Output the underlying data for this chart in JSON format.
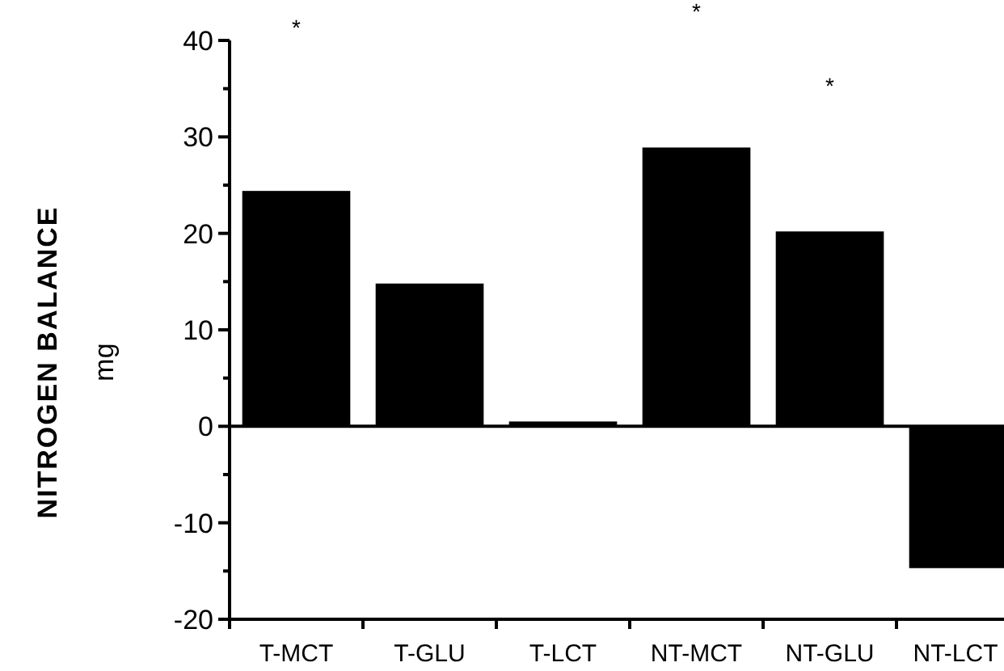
{
  "chart_data": {
    "type": "bar",
    "ylabel": "NITROGEN BALANCE",
    "y2label": "mg",
    "categories": [
      "T-MCT",
      "T-GLU",
      "T-LCT",
      "NT-MCT",
      "NT-GLU",
      "NT-LCT"
    ],
    "values": [
      24.4,
      14.8,
      0.5,
      28.9,
      20.2,
      -14.7
    ],
    "color": "#000000",
    "ylim": [
      -20,
      40
    ],
    "yticks": [
      -20,
      {
        "value": -15,
        "label": null
      },
      -10,
      {
        "value": -5,
        "label": null
      },
      0,
      {
        "value": 5,
        "label": null
      },
      10,
      {
        "value": 15,
        "label": null
      },
      20,
      {
        "value": 25,
        "label": null
      },
      30,
      {
        "value": 35,
        "label": null
      },
      40
    ],
    "ref_lines": [
      {
        "axis": "y",
        "value": 0
      }
    ],
    "annotations": [
      "*",
      "*",
      "*"
    ]
  }
}
